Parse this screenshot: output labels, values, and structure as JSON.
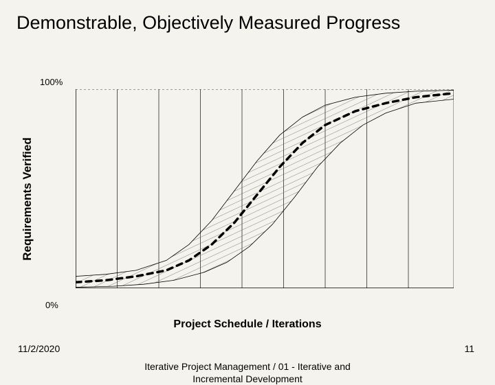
{
  "title": "Demonstrable, Objectively Measured Progress",
  "chart": {
    "type": "line",
    "ylabel": "Requirements Verified",
    "xlabel": "Project Schedule / Iterations",
    "ytick_top": "100%",
    "ytick_bot": "0%",
    "ylim": [
      0,
      100
    ],
    "xlim": [
      0,
      100
    ],
    "gridlines_x": [
      0,
      11,
      22,
      33,
      44,
      55,
      66,
      77,
      88,
      100
    ],
    "gridline_color": "#555555",
    "gridline_width": 1,
    "top_ref_dash": "3,3",
    "top_ref_color": "#444444",
    "axis_color": "#000000",
    "background_color": "#f5f3ed",
    "band": {
      "upper_points": [
        [
          0,
          6
        ],
        [
          8,
          7
        ],
        [
          16,
          9
        ],
        [
          24,
          14
        ],
        [
          30,
          22
        ],
        [
          36,
          34
        ],
        [
          42,
          49
        ],
        [
          48,
          64
        ],
        [
          54,
          77
        ],
        [
          60,
          86
        ],
        [
          66,
          92
        ],
        [
          74,
          96
        ],
        [
          82,
          98
        ],
        [
          90,
          99
        ],
        [
          100,
          99.5
        ]
      ],
      "lower_points": [
        [
          0,
          0.5
        ],
        [
          10,
          1
        ],
        [
          18,
          2
        ],
        [
          26,
          4
        ],
        [
          34,
          8
        ],
        [
          40,
          13
        ],
        [
          46,
          21
        ],
        [
          52,
          32
        ],
        [
          58,
          46
        ],
        [
          64,
          61
        ],
        [
          70,
          73
        ],
        [
          76,
          82
        ],
        [
          82,
          88
        ],
        [
          90,
          93
        ],
        [
          100,
          95
        ]
      ],
      "hatch_spacing": 8,
      "hatch_color": "#666666",
      "hatch_width": 0.8,
      "outline_color": "#000000",
      "outline_width": 0.8
    },
    "mid_curve": {
      "points": [
        [
          0,
          3
        ],
        [
          8,
          4
        ],
        [
          16,
          6
        ],
        [
          24,
          9
        ],
        [
          30,
          14
        ],
        [
          36,
          22
        ],
        [
          42,
          33
        ],
        [
          48,
          47
        ],
        [
          54,
          61
        ],
        [
          60,
          73
        ],
        [
          66,
          82
        ],
        [
          74,
          89
        ],
        [
          82,
          93
        ],
        [
          90,
          96
        ],
        [
          100,
          98
        ]
      ],
      "color": "#000000",
      "width": 3.5,
      "dash": "8,7"
    }
  },
  "footer": {
    "date": "11/2/2020",
    "center": "Iterative Project Management / 01 - Iterative and Incremental Development",
    "page": "11"
  }
}
